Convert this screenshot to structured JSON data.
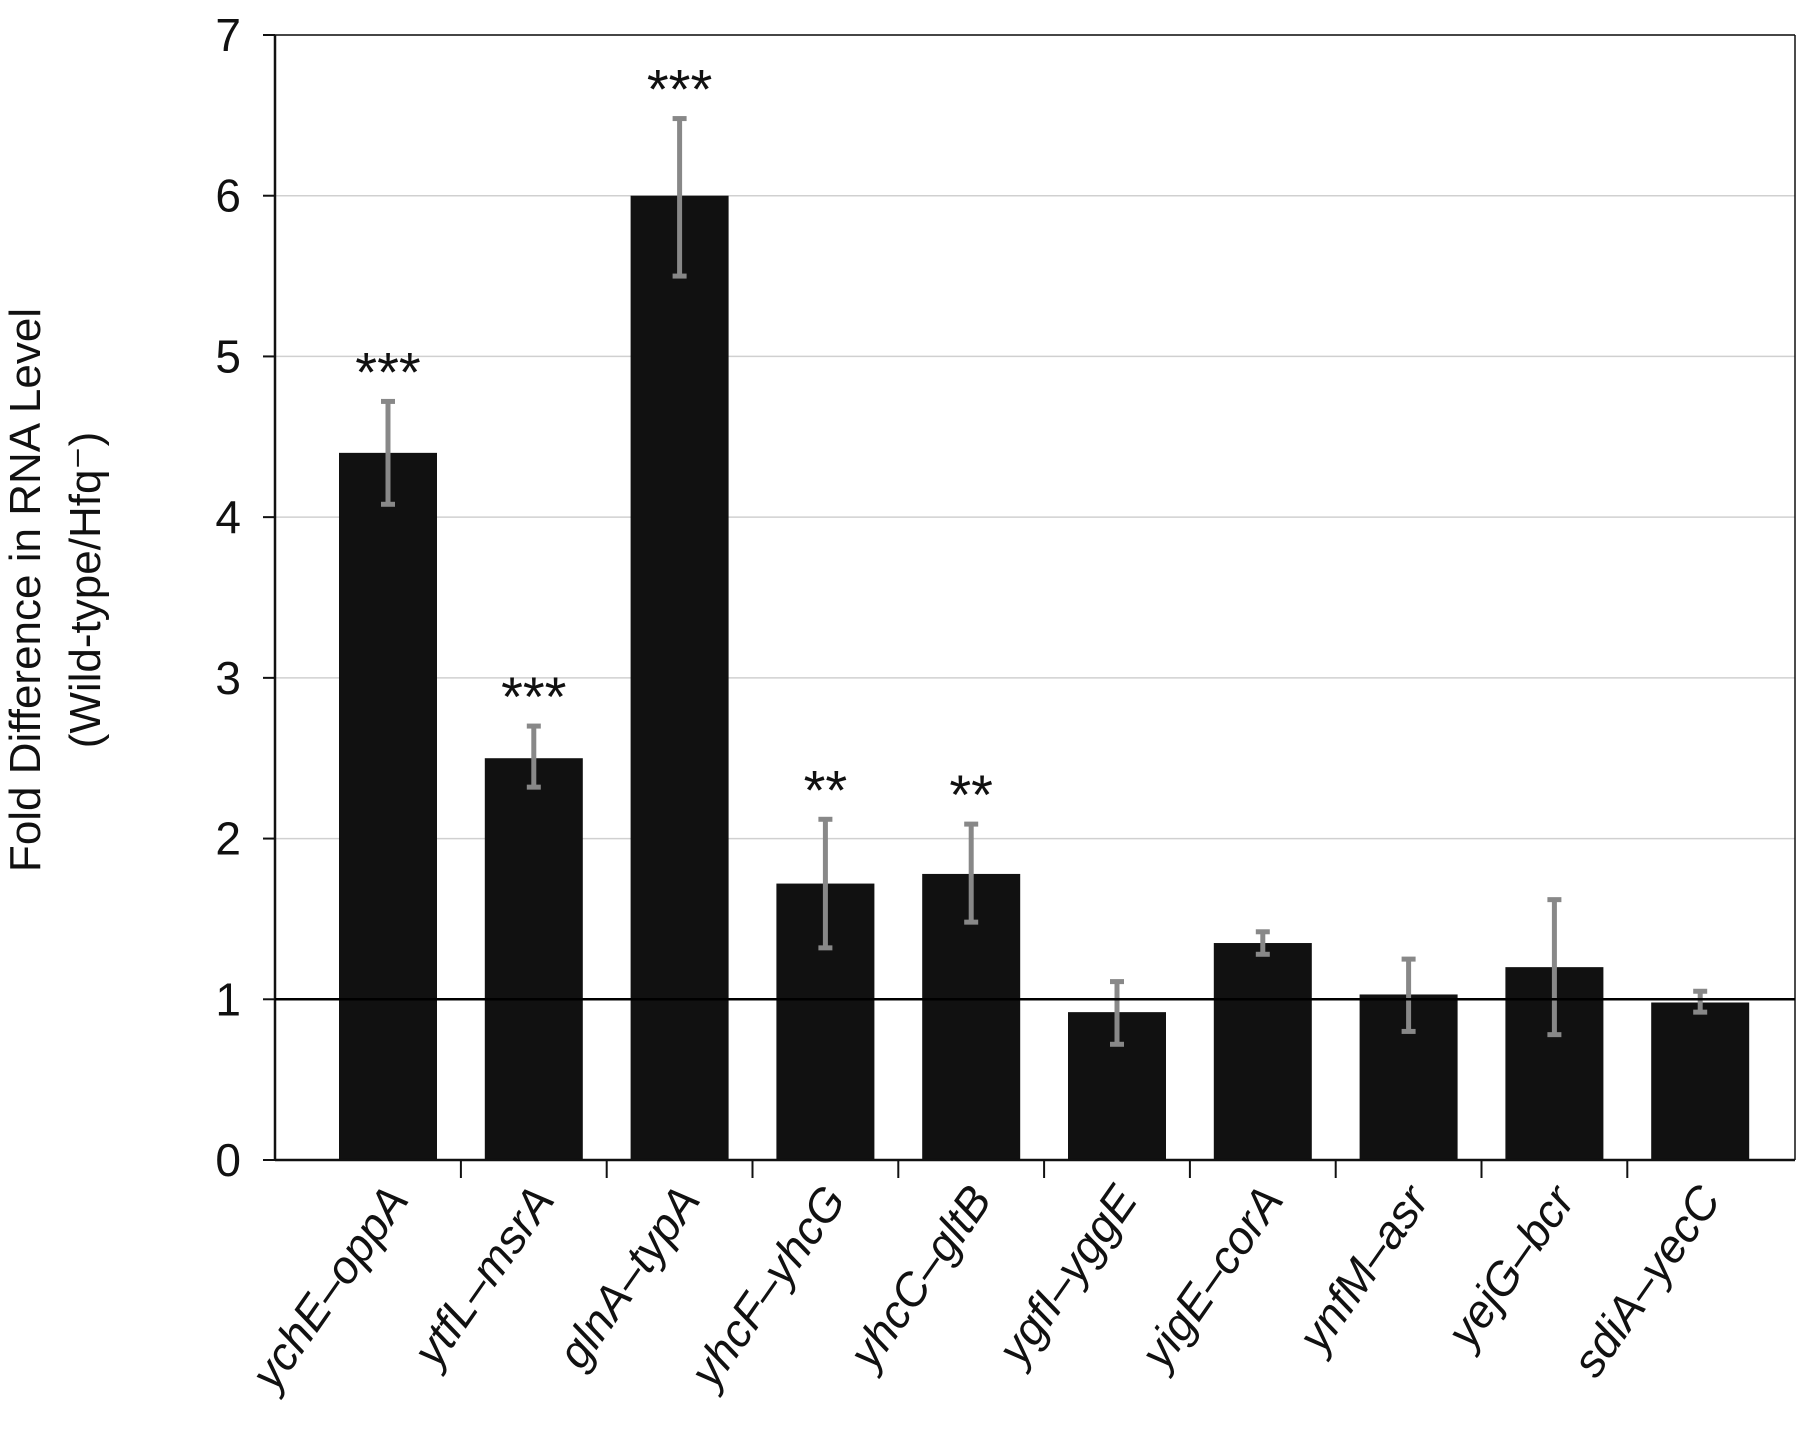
{
  "chart_data": {
    "type": "bar",
    "categories": [
      "ychE–oppA",
      "ytfL–msrA",
      "glnA–typA",
      "yhcF–yhcG",
      "yhcC–gltB",
      "ygfI–yggE",
      "yigE–corA",
      "ynfM–asr",
      "yejG–bcr",
      "sdiA–yecC"
    ],
    "values": [
      4.4,
      2.5,
      6.0,
      1.72,
      1.78,
      0.92,
      1.35,
      1.03,
      1.2,
      0.98
    ],
    "error_low": [
      4.08,
      2.32,
      5.5,
      1.32,
      1.48,
      0.72,
      1.28,
      0.8,
      0.78,
      0.92
    ],
    "error_high": [
      4.72,
      2.7,
      6.48,
      2.12,
      2.09,
      1.11,
      1.42,
      1.25,
      1.62,
      1.05
    ],
    "significance": [
      "***",
      "***",
      "***",
      "**",
      "**",
      "",
      "",
      "",
      "",
      ""
    ],
    "ylabel_line1": "Fold Difference in RNA Level",
    "ylabel_line2": "(Wild-type/Hfq⁻)",
    "ylim": [
      0,
      7
    ],
    "yticks": [
      "0",
      "1",
      "2",
      "3",
      "4",
      "5",
      "6",
      "7"
    ],
    "reference_line": 1,
    "grid": true,
    "colors": {
      "bar": "#111111",
      "error_bar": "#888888",
      "grid": "#d0d0d0",
      "axis": "#111111"
    }
  }
}
